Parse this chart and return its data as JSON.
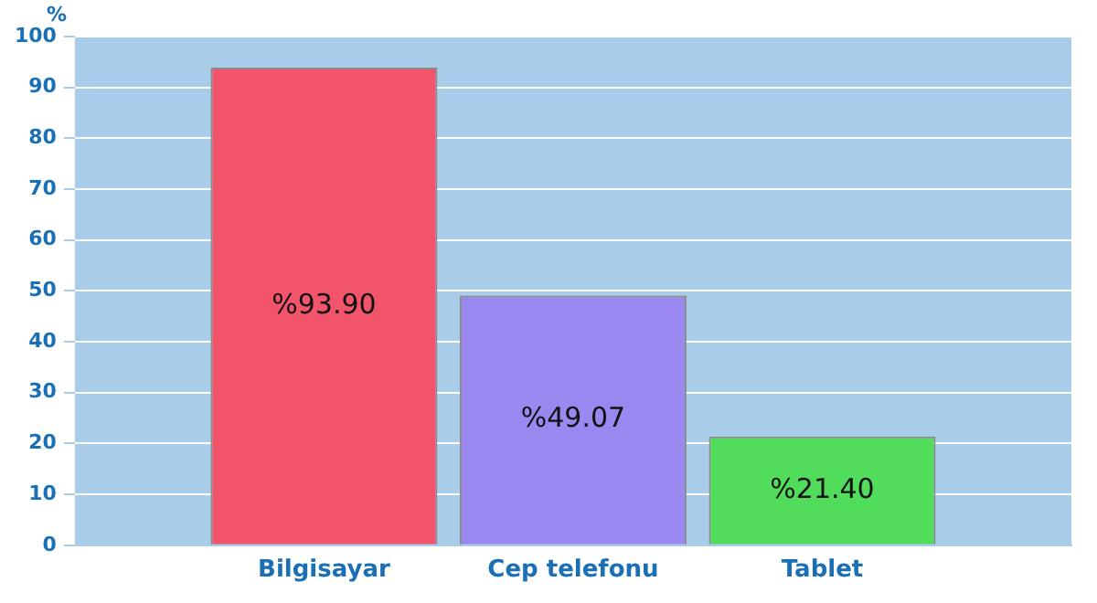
{
  "chart_data": {
    "type": "bar",
    "ylabel": "%",
    "categories": [
      "Bilgisayar",
      "Cep telefonu",
      "Tablet"
    ],
    "values": [
      93.9,
      49.07,
      21.4
    ],
    "colors": [
      "#f2556b",
      "#9b87f0",
      "#52dc5c"
    ],
    "value_labels": [
      "%93.90",
      "%49.07",
      "%21.40"
    ],
    "ylim": [
      0,
      100
    ],
    "yticks": [
      0,
      10,
      20,
      30,
      40,
      50,
      60,
      70,
      80,
      90,
      100
    ],
    "grid": "y",
    "legend": false
  }
}
